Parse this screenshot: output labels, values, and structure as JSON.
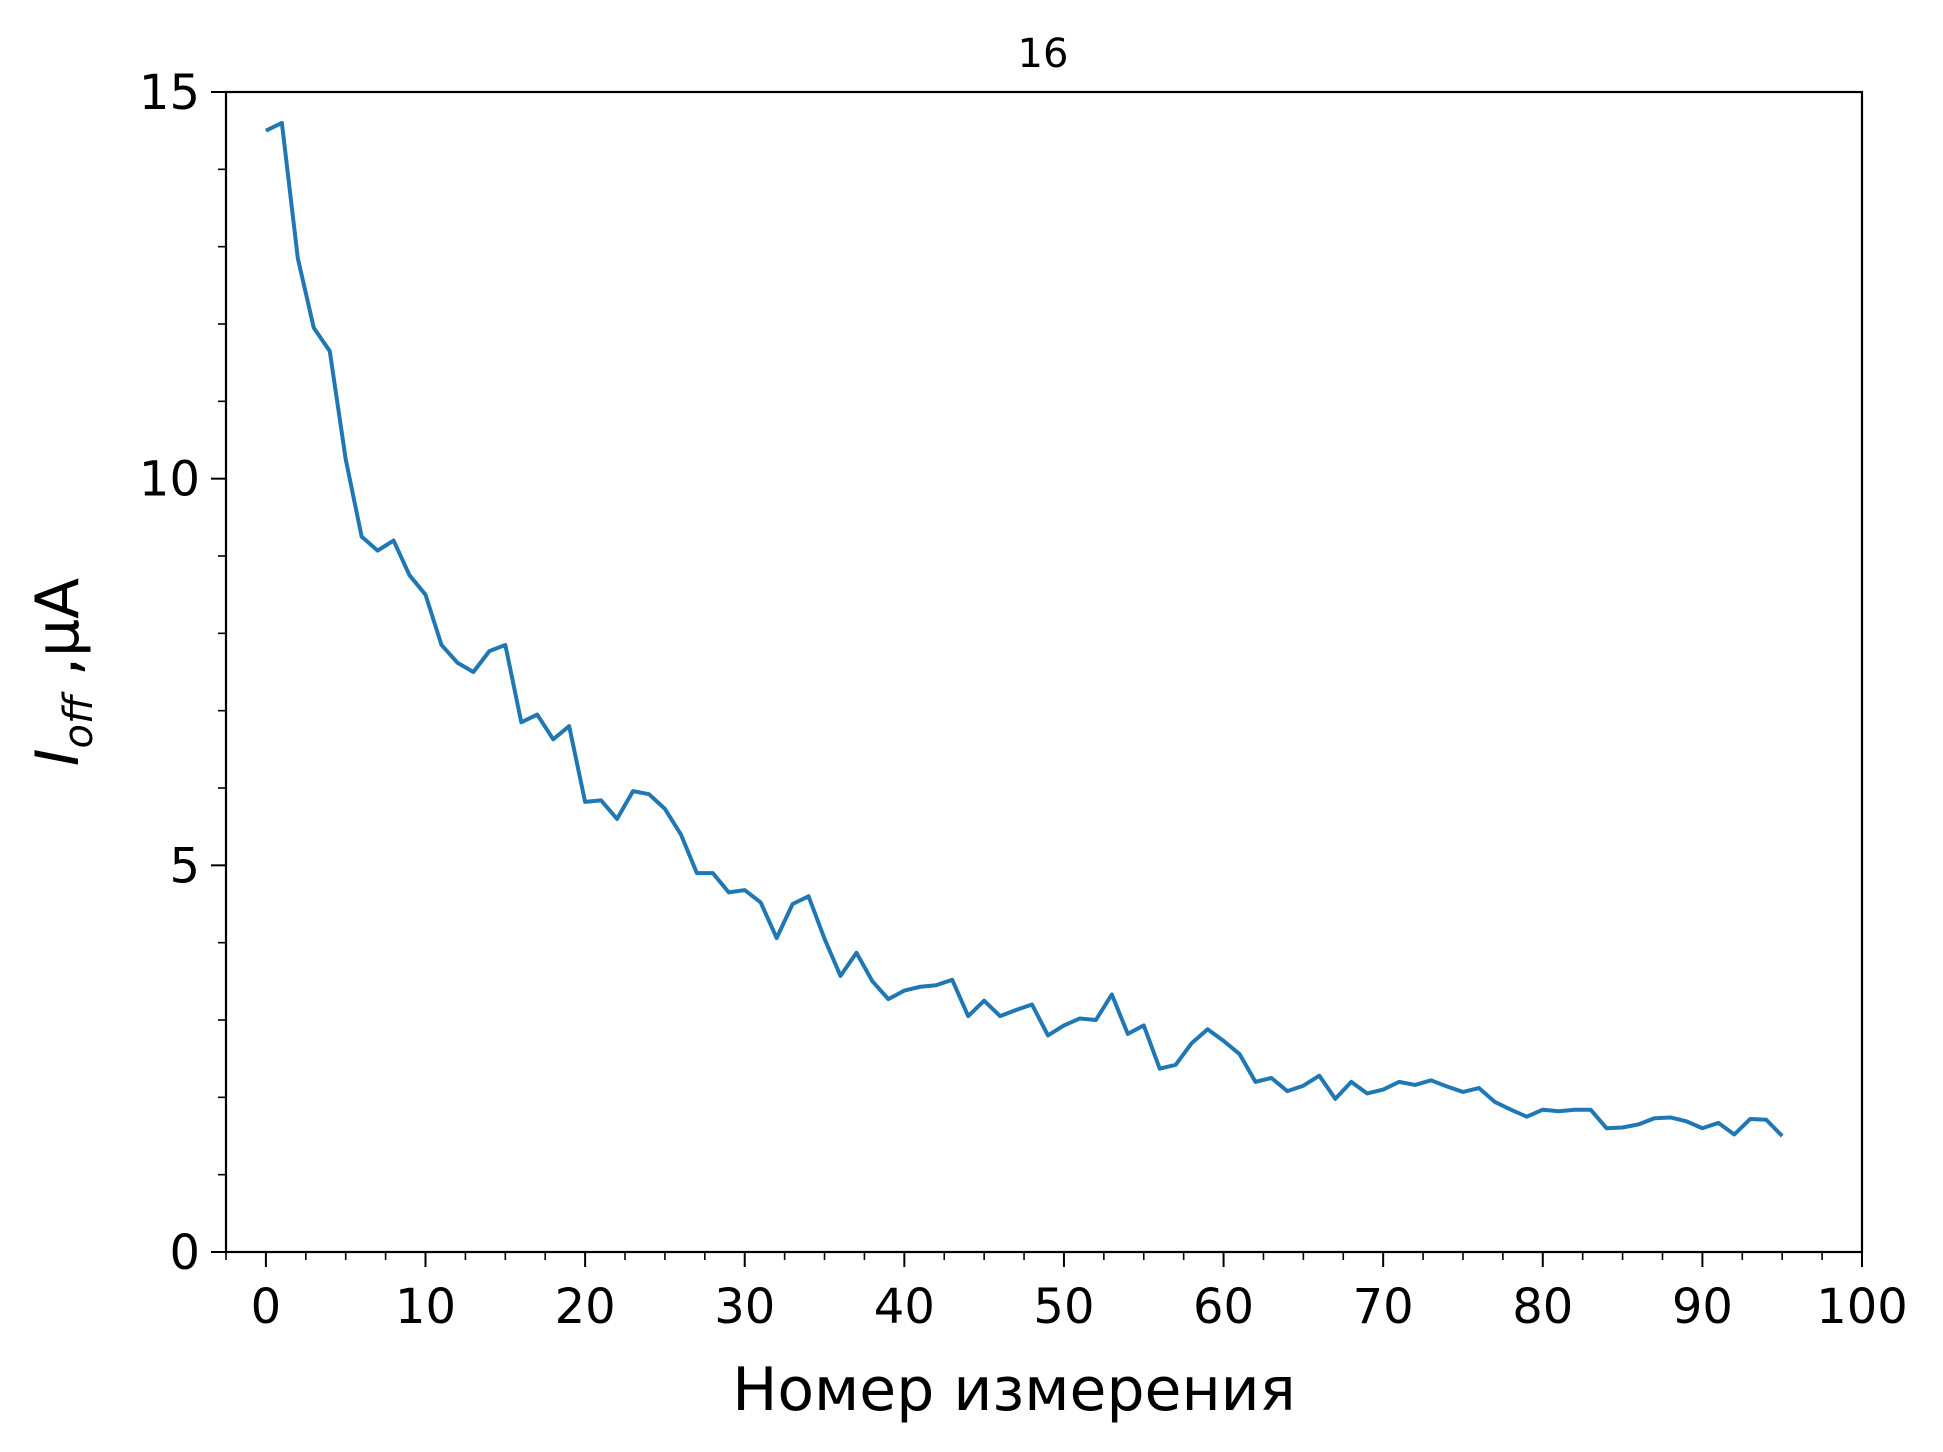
{
  "chart_data": {
    "type": "line",
    "title": "16",
    "xlabel": "Номер измерения",
    "ylabel": "I_off ,μA",
    "ylabel_main": "I",
    "ylabel_sub": "off",
    "ylabel_unit": " ,μA",
    "xlim": [
      -2.5,
      100
    ],
    "ylim": [
      0,
      15
    ],
    "x_major_ticks": [
      0,
      10,
      20,
      30,
      40,
      50,
      60,
      70,
      80,
      90,
      100
    ],
    "x_minor_ticks": [
      -2.5,
      2.5,
      5,
      7.5,
      12.5,
      15,
      17.5,
      22.5,
      25,
      27.5,
      32.5,
      35,
      37.5,
      42.5,
      45,
      47.5,
      52.5,
      55,
      57.5,
      62.5,
      65,
      67.5,
      72.5,
      75,
      77.5,
      82.5,
      85,
      87.5,
      92.5,
      95,
      97.5
    ],
    "y_major_ticks": [
      0,
      5,
      10,
      15
    ],
    "y_minor_ticks": [
      1,
      2,
      3,
      4,
      6,
      7,
      8,
      9,
      11,
      12,
      13,
      14
    ],
    "grid": false,
    "series": [
      {
        "color": "#1f77b4",
        "x": [
          0,
          1,
          2,
          3,
          4,
          5,
          6,
          7,
          8,
          9,
          10,
          11,
          12,
          13,
          14,
          15,
          16,
          17,
          18,
          19,
          20,
          21,
          22,
          23,
          24,
          25,
          26,
          27,
          28,
          29,
          30,
          31,
          32,
          33,
          34,
          35,
          36,
          37,
          38,
          39,
          40,
          41,
          42,
          43,
          44,
          45,
          46,
          47,
          48,
          49,
          50,
          51,
          52,
          53,
          54,
          55,
          56,
          57,
          58,
          59,
          60,
          61,
          62,
          63,
          64,
          65,
          66,
          67,
          68,
          69,
          70,
          71,
          72,
          73,
          74,
          75,
          76,
          77,
          78,
          79,
          80,
          81,
          82,
          83,
          84,
          85,
          86,
          87,
          88,
          89,
          90,
          91,
          92,
          93,
          94,
          95
        ],
        "y": [
          14.5,
          14.6,
          12.85,
          11.95,
          11.65,
          10.25,
          9.25,
          9.07,
          9.2,
          8.75,
          8.5,
          7.85,
          7.62,
          7.5,
          7.77,
          7.85,
          6.85,
          6.95,
          6.63,
          6.8,
          5.82,
          5.84,
          5.6,
          5.96,
          5.92,
          5.73,
          5.4,
          4.9,
          4.9,
          4.65,
          4.68,
          4.52,
          4.06,
          4.5,
          4.6,
          4.05,
          3.57,
          3.87,
          3.5,
          3.27,
          3.38,
          3.43,
          3.45,
          3.52,
          3.05,
          3.25,
          3.05,
          3.13,
          3.2,
          2.8,
          2.93,
          3.02,
          3.0,
          3.33,
          2.82,
          2.93,
          2.37,
          2.42,
          2.7,
          2.88,
          2.73,
          2.56,
          2.2,
          2.25,
          2.08,
          2.15,
          2.28,
          1.98,
          2.2,
          2.05,
          2.1,
          2.2,
          2.16,
          2.22,
          2.14,
          2.07,
          2.12,
          1.94,
          1.84,
          1.75,
          1.84,
          1.82,
          1.84,
          1.84,
          1.6,
          1.61,
          1.65,
          1.73,
          1.74,
          1.69,
          1.6,
          1.67,
          1.52,
          1.72,
          1.71,
          1.5
        ]
      }
    ]
  }
}
